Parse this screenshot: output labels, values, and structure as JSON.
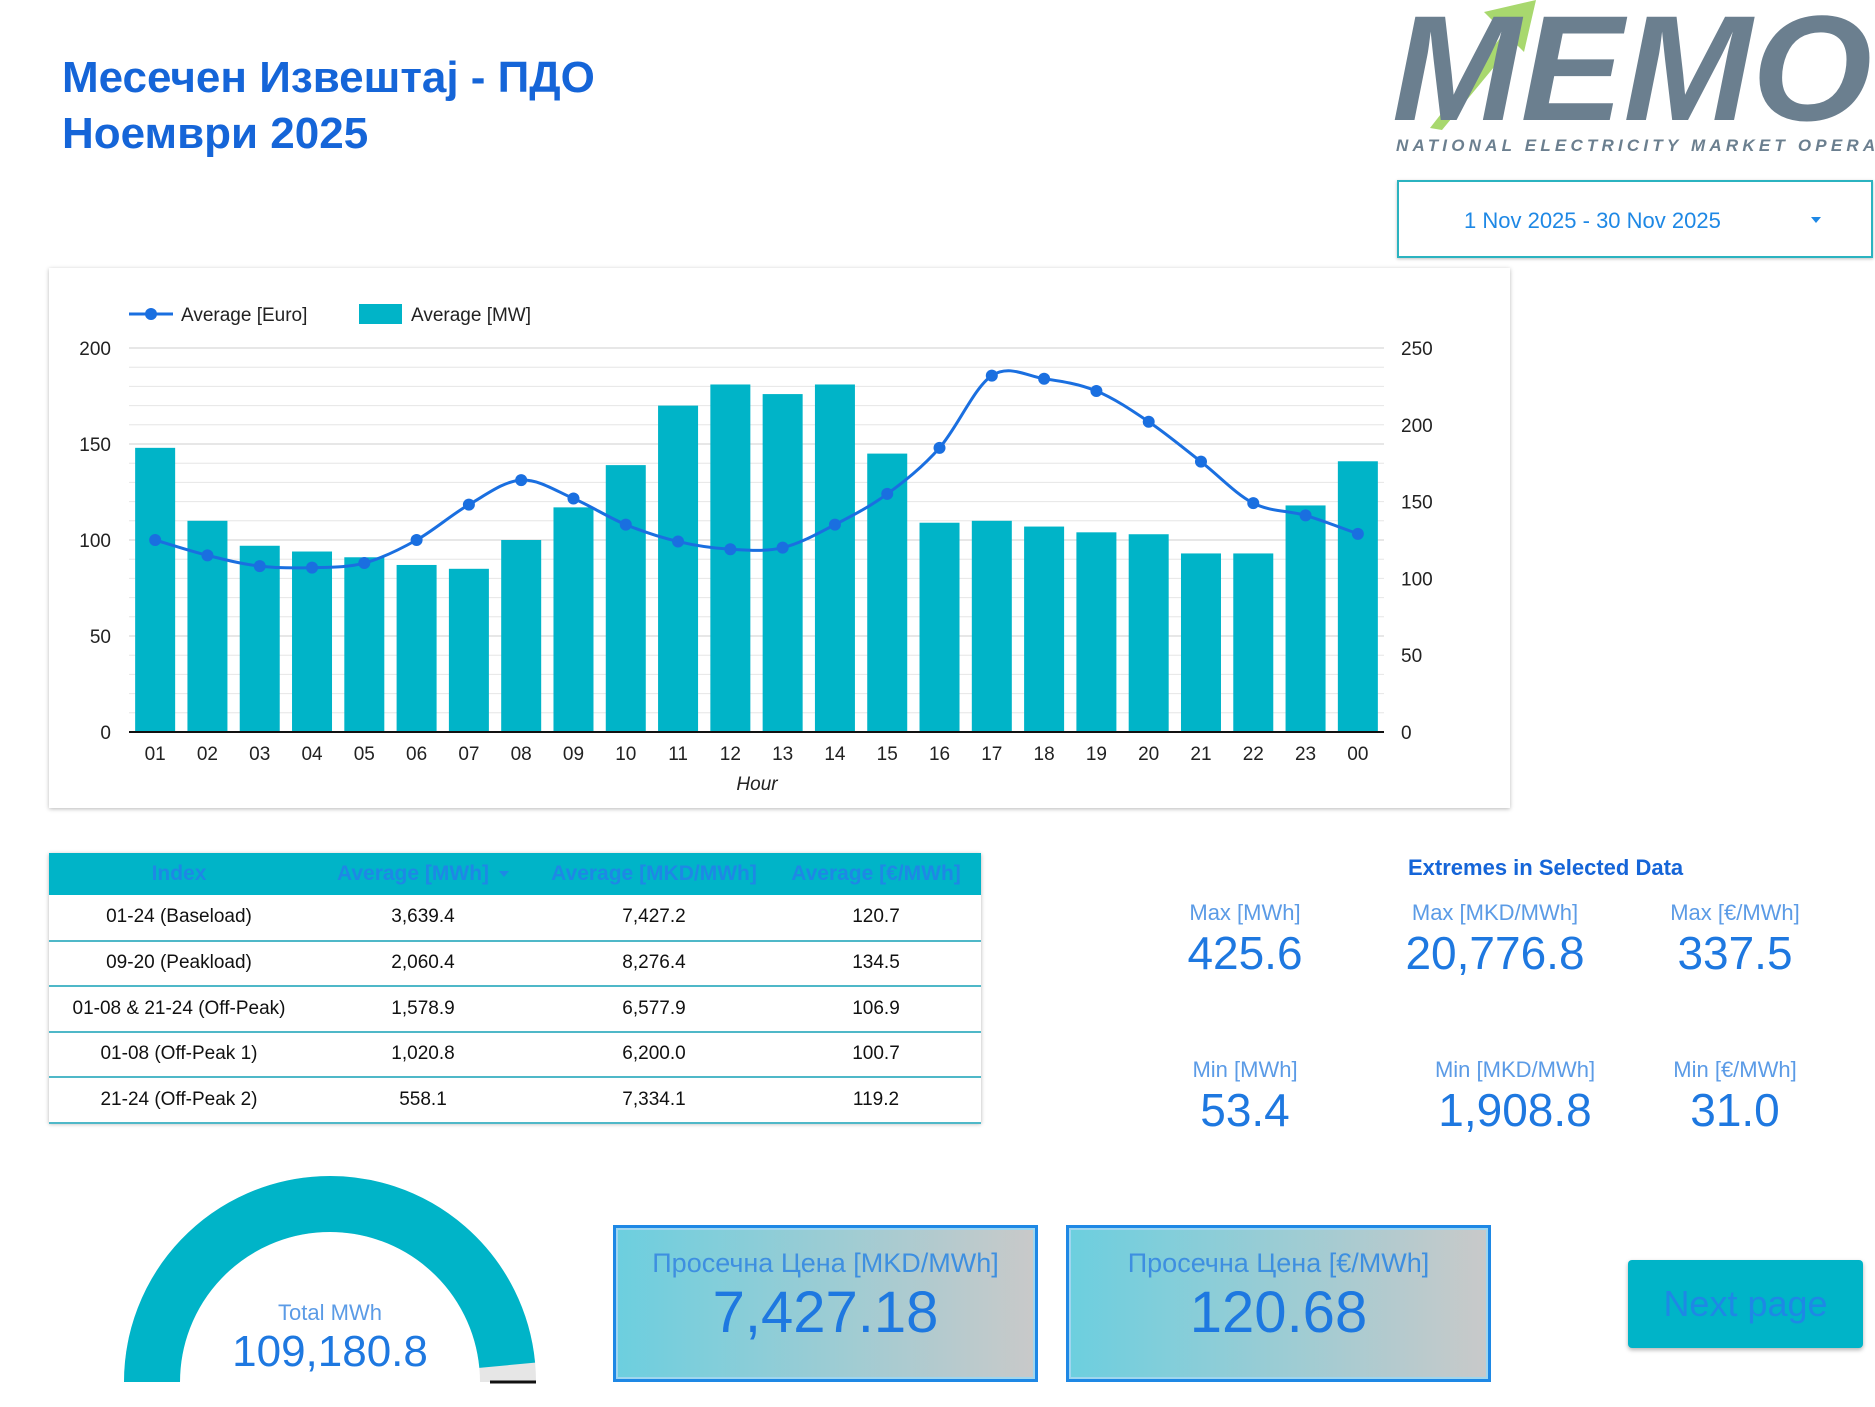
{
  "header": {
    "title_line1": "Месечен Извештај - ПДО",
    "title_line2": "Ноември 2025"
  },
  "logo": {
    "wordmark": "MEMO",
    "tagline": "NATIONAL ELECTRICITY MARKET OPERATOR",
    "icon": "arrow-up-right-icon",
    "colors": {
      "wordmark": "#6b7f8f",
      "arrow": "#a8d86e"
    }
  },
  "date_range": {
    "value": "1 Nov 2025 - 30 Nov 2025",
    "icon": "chevron-down-icon"
  },
  "chart_data": {
    "type": "bar",
    "xlabel": "Hour",
    "categories": [
      "01",
      "02",
      "03",
      "04",
      "05",
      "06",
      "07",
      "08",
      "09",
      "10",
      "11",
      "12",
      "13",
      "14",
      "15",
      "16",
      "17",
      "18",
      "19",
      "20",
      "21",
      "22",
      "23",
      "00"
    ],
    "series": [
      {
        "name": "Average [MW]",
        "kind": "bar",
        "axis": "left",
        "color": "#00b4c8",
        "values": [
          148,
          110,
          97,
          94,
          91,
          87,
          85,
          100,
          117,
          139,
          170,
          181,
          176,
          181,
          145,
          109,
          110,
          107,
          104,
          103,
          93,
          93,
          118,
          141
        ]
      },
      {
        "name": "Average [Euro]",
        "kind": "line",
        "axis": "right",
        "color": "#1a6fe0",
        "values": [
          125,
          115,
          108,
          107,
          110,
          125,
          148,
          164,
          152,
          135,
          124,
          119,
          120,
          135,
          155,
          185,
          232,
          230,
          222,
          202,
          176,
          149,
          141,
          129
        ]
      }
    ],
    "left_axis": {
      "ylim": [
        0,
        200
      ],
      "ticks": [
        0,
        50,
        100,
        150,
        200
      ]
    },
    "right_axis": {
      "ylim": [
        0,
        250
      ],
      "ticks": [
        0,
        50,
        100,
        150,
        200,
        250
      ]
    },
    "legend_position": "top-left",
    "grid": true
  },
  "index_table": {
    "columns": [
      "Index",
      "Average [MWh]",
      "Average [MKD/MWh]",
      "Average [€/MWh]"
    ],
    "rows": [
      [
        "01-24 (Baseload)",
        "3,639.4",
        "7,427.2",
        "120.7"
      ],
      [
        "09-20 (Peakload)",
        "2,060.4",
        "8,276.4",
        "134.5"
      ],
      [
        "01-08 & 21-24 (Off-Peak)",
        "1,578.9",
        "6,577.9",
        "106.9"
      ],
      [
        "01-08 (Off-Peak 1)",
        "1,020.8",
        "6,200.0",
        "100.7"
      ],
      [
        "21-24 (Off-Peak 2)",
        "558.1",
        "7,334.1",
        "119.2"
      ]
    ]
  },
  "extremes": {
    "title": "Extremes in Selected Data",
    "max_mwh": {
      "label": "Max [MWh]",
      "value": "425.6"
    },
    "max_mkd": {
      "label": "Max [MKD/MWh]",
      "value": "20,776.8"
    },
    "max_eur": {
      "label": "Max [€/MWh]",
      "value": "337.5"
    },
    "min_mwh": {
      "label": "Min [MWh]",
      "value": "53.4"
    },
    "min_mkd": {
      "label": "Min [MKD/MWh]",
      "value": "1,908.8"
    },
    "min_eur": {
      "label": "Min [€/MWh]",
      "value": "31.0"
    }
  },
  "gauge": {
    "label": "Total MWh",
    "value": "109,180.8",
    "fill_fraction": 0.97,
    "color": "#00b4c8"
  },
  "price_mkd": {
    "label": "Просечна Цена [MKD/MWh]",
    "value": "7,427.18"
  },
  "price_eur": {
    "label": "Просечна Цена [€/MWh]",
    "value": "120.68"
  },
  "next_button": {
    "label": "Next page"
  }
}
